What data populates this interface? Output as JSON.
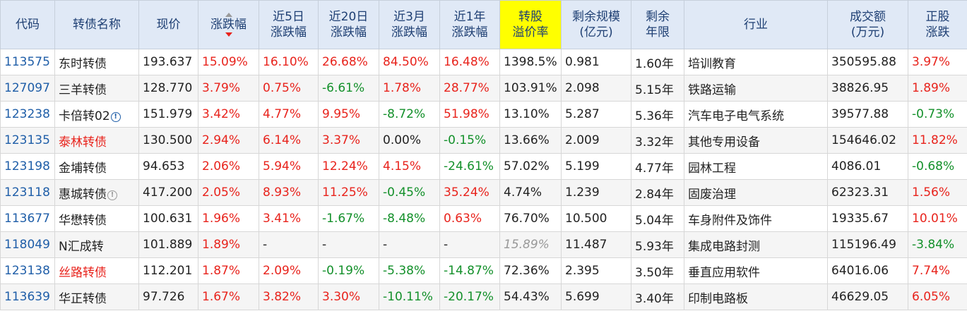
{
  "headers": {
    "code": "代码",
    "name": "转债名称",
    "price": "现价",
    "change": "涨跌幅",
    "chg5d_l1": "近5日",
    "chg5d_l2": "涨跌幅",
    "chg20d_l1": "近20日",
    "chg20d_l2": "涨跌幅",
    "chg3m_l1": "近3月",
    "chg3m_l2": "涨跌幅",
    "chg1y_l1": "近1年",
    "chg1y_l2": "涨跌幅",
    "premium_l1": "转股",
    "premium_l2": "溢价率",
    "scale_l1": "剩余规模",
    "scale_l2": "(亿元)",
    "years_l1": "剩余",
    "years_l2": "年限",
    "industry": "行业",
    "volume_l1": "成交额",
    "volume_l2": "(万元)",
    "stock_l1": "正股",
    "stock_l2": "涨跌"
  },
  "colors": {
    "up": "#e8231c",
    "down": "#13902a",
    "link": "#1f5ea8",
    "header_bg": "#e0e9f6",
    "highlight": "#ffff00"
  },
  "rows": [
    {
      "code": "113575",
      "name": "东时转债",
      "name_color": "dark",
      "info_icon": "",
      "price": "193.637",
      "change": "15.09%",
      "chg5d": "16.10%",
      "chg20d": "26.68%",
      "chg3m": "84.50%",
      "chg1y": "16.48%",
      "premium": "1398.5%",
      "premium_style": "dark",
      "scale": "0.981",
      "years": "1.60年",
      "industry": "培训教育",
      "volume": "350595.88",
      "stock": "3.97%"
    },
    {
      "code": "127097",
      "name": "三羊转债",
      "name_color": "dark",
      "info_icon": "",
      "price": "128.770",
      "change": "3.79%",
      "chg5d": "0.75%",
      "chg20d": "-6.61%",
      "chg3m": "1.78%",
      "chg1y": "28.77%",
      "premium": "103.91%",
      "premium_style": "dark",
      "scale": "2.098",
      "years": "5.15年",
      "industry": "铁路运输",
      "volume": "38826.95",
      "stock": "1.89%"
    },
    {
      "code": "123238",
      "name": "卡倍转02",
      "name_color": "dark",
      "info_icon": "blue",
      "price": "151.979",
      "change": "3.42%",
      "chg5d": "4.77%",
      "chg20d": "9.95%",
      "chg3m": "-8.72%",
      "chg1y": "51.98%",
      "premium": "13.10%",
      "premium_style": "dark",
      "scale": "5.287",
      "years": "5.36年",
      "industry": "汽车电子电气系统",
      "volume": "39577.88",
      "stock": "-0.73%"
    },
    {
      "code": "123135",
      "name": "泰林转债",
      "name_color": "red",
      "info_icon": "",
      "price": "130.500",
      "change": "2.94%",
      "chg5d": "6.14%",
      "chg20d": "3.37%",
      "chg3m": "0.00%",
      "chg1y": "-0.15%",
      "premium": "13.66%",
      "premium_style": "dark",
      "scale": "2.009",
      "years": "3.32年",
      "industry": "其他专用设备",
      "volume": "154646.02",
      "stock": "11.82%"
    },
    {
      "code": "123198",
      "name": "金埔转债",
      "name_color": "dark",
      "info_icon": "",
      "price": "94.653",
      "change": "2.06%",
      "chg5d": "5.94%",
      "chg20d": "12.24%",
      "chg3m": "4.15%",
      "chg1y": "-24.61%",
      "premium": "57.02%",
      "premium_style": "dark",
      "scale": "5.199",
      "years": "4.77年",
      "industry": "园林工程",
      "volume": "4086.01",
      "stock": "-0.68%"
    },
    {
      "code": "123118",
      "name": "惠城转债",
      "name_color": "dark",
      "info_icon": "grey",
      "price": "417.200",
      "change": "2.05%",
      "chg5d": "8.93%",
      "chg20d": "11.25%",
      "chg3m": "-0.45%",
      "chg1y": "35.24%",
      "premium": "4.74%",
      "premium_style": "dark",
      "scale": "1.239",
      "years": "2.84年",
      "industry": "固废治理",
      "volume": "62323.31",
      "stock": "1.56%"
    },
    {
      "code": "113677",
      "name": "华懋转债",
      "name_color": "dark",
      "info_icon": "",
      "price": "100.631",
      "change": "1.96%",
      "chg5d": "3.41%",
      "chg20d": "-1.67%",
      "chg3m": "-8.48%",
      "chg1y": "0.63%",
      "premium": "76.70%",
      "premium_style": "dark",
      "scale": "10.500",
      "years": "5.04年",
      "industry": "车身附件及饰件",
      "volume": "19335.67",
      "stock": "10.01%"
    },
    {
      "code": "118049",
      "name": "N汇成转",
      "name_color": "dark",
      "info_icon": "",
      "price": "101.889",
      "change": "1.89%",
      "chg5d": "-",
      "chg20d": "-",
      "chg3m": "-",
      "chg1y": "-",
      "premium": "15.89%",
      "premium_style": "grey",
      "scale": "11.487",
      "years": "5.93年",
      "industry": "集成电路封测",
      "volume": "115196.49",
      "stock": "-3.84%"
    },
    {
      "code": "123138",
      "name": "丝路转债",
      "name_color": "red",
      "info_icon": "",
      "price": "112.201",
      "change": "1.87%",
      "chg5d": "2.09%",
      "chg20d": "-0.19%",
      "chg3m": "-5.38%",
      "chg1y": "-14.87%",
      "premium": "72.36%",
      "premium_style": "dark",
      "scale": "2.395",
      "years": "3.50年",
      "industry": "垂直应用软件",
      "volume": "64016.06",
      "stock": "7.74%"
    },
    {
      "code": "113639",
      "name": "华正转债",
      "name_color": "dark",
      "info_icon": "",
      "price": "97.726",
      "change": "1.67%",
      "chg5d": "3.82%",
      "chg20d": "3.30%",
      "chg3m": "-10.11%",
      "chg1y": "-20.17%",
      "premium": "54.43%",
      "premium_style": "dark",
      "scale": "5.699",
      "years": "3.40年",
      "industry": "印制电路板",
      "volume": "46629.05",
      "stock": "6.05%"
    }
  ]
}
